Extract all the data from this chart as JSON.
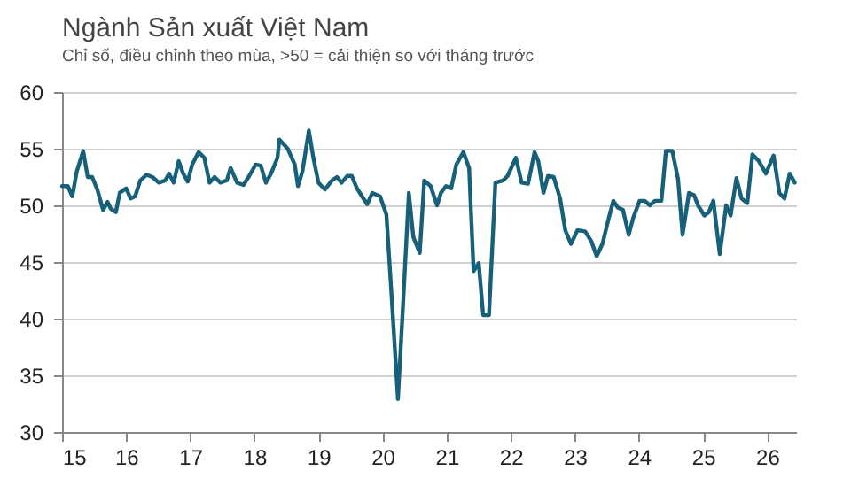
{
  "chart_data": {
    "type": "line",
    "title": "Ngành Sản xuất Việt Nam",
    "subtitle": "Chỉ số, điều chỉnh theo mùa, >50 = cải thiện so với tháng trước",
    "x": [
      15.0,
      15.09,
      15.16,
      15.23,
      15.33,
      15.4,
      15.47,
      15.55,
      15.64,
      15.71,
      15.76,
      15.84,
      15.9,
      16.0,
      16.07,
      16.14,
      16.22,
      16.32,
      16.41,
      16.51,
      16.61,
      16.67,
      16.74,
      16.82,
      16.89,
      16.96,
      17.03,
      17.13,
      17.22,
      17.3,
      17.38,
      17.47,
      17.57,
      17.63,
      17.73,
      17.83,
      17.92,
      18.02,
      18.1,
      18.18,
      18.26,
      18.36,
      18.39,
      18.52,
      18.63,
      18.68,
      18.75,
      18.85,
      18.92,
      19.0,
      19.1,
      19.21,
      19.29,
      19.36,
      19.45,
      19.52,
      19.6,
      19.69,
      19.76,
      19.84,
      19.96,
      20.06,
      20.13,
      20.24,
      20.32,
      20.41,
      20.48,
      20.58,
      20.65,
      20.75,
      20.85,
      20.91,
      20.99,
      21.07,
      21.15,
      21.26,
      21.35,
      21.42,
      21.5,
      21.57,
      21.66,
      21.76,
      21.88,
      21.95,
      22.08,
      22.17,
      22.27,
      22.37,
      22.43,
      22.51,
      22.58,
      22.67,
      22.77,
      22.85,
      22.94,
      23.04,
      23.16,
      23.26,
      23.34,
      23.43,
      23.53,
      23.6,
      23.67,
      23.75,
      23.84,
      23.91,
      24.01,
      24.09,
      24.17,
      24.25,
      24.35,
      24.42,
      24.52,
      24.61,
      24.68,
      24.78,
      24.86,
      24.92,
      25.02,
      25.09,
      25.16,
      25.26,
      25.36,
      25.43,
      25.52,
      25.6,
      25.69,
      25.77,
      25.87,
      25.98,
      26.1,
      26.19,
      26.27,
      26.35,
      26.43
    ],
    "series": [
      {
        "color": "#17607a",
        "values": [
          51.7,
          51.7,
          50.8,
          53.0,
          54.8,
          52.5,
          52.5,
          51.4,
          49.6,
          50.3,
          49.7,
          49.4,
          51.1,
          51.5,
          50.6,
          50.8,
          52.2,
          52.7,
          52.5,
          52.0,
          52.2,
          52.8,
          52.0,
          53.9,
          52.8,
          52.1,
          53.6,
          54.7,
          54.2,
          52.0,
          52.5,
          52.0,
          52.2,
          53.3,
          52.0,
          51.8,
          52.6,
          53.6,
          53.5,
          52.0,
          52.8,
          54.2,
          55.8,
          55.0,
          53.6,
          51.7,
          53.0,
          56.6,
          54.2,
          52.0,
          51.4,
          52.2,
          52.5,
          52.0,
          52.6,
          52.6,
          51.5,
          50.7,
          50.1,
          51.1,
          50.8,
          49.2,
          43.0,
          32.9,
          41.3,
          51.1,
          47.2,
          45.8,
          52.2,
          51.7,
          50.0,
          51.1,
          51.7,
          51.5,
          53.6,
          54.7,
          53.3,
          44.2,
          44.9,
          40.3,
          40.3,
          52.0,
          52.2,
          52.6,
          54.2,
          52.0,
          51.9,
          54.7,
          53.9,
          51.1,
          52.6,
          52.5,
          50.6,
          47.8,
          46.6,
          47.8,
          47.7,
          46.8,
          45.5,
          46.6,
          48.9,
          50.4,
          49.8,
          49.6,
          47.4,
          48.9,
          50.4,
          50.4,
          50.0,
          50.4,
          50.4,
          54.8,
          54.8,
          52.3,
          47.4,
          51.1,
          50.9,
          50.0,
          49.1,
          49.4,
          50.4,
          45.7,
          50.0,
          49.1,
          52.4,
          50.6,
          50.2,
          54.5,
          53.9,
          52.8,
          54.4,
          51.1,
          50.6,
          52.8,
          52.0
        ]
      }
    ],
    "xlim": [
      15,
      26.45
    ],
    "xticks": [
      15,
      16,
      17,
      18,
      19,
      20,
      21,
      22,
      23,
      24,
      25,
      26
    ],
    "ylim": [
      30,
      60
    ],
    "yticks": [
      30,
      35,
      40,
      45,
      50,
      55,
      60
    ],
    "grid": "y"
  }
}
